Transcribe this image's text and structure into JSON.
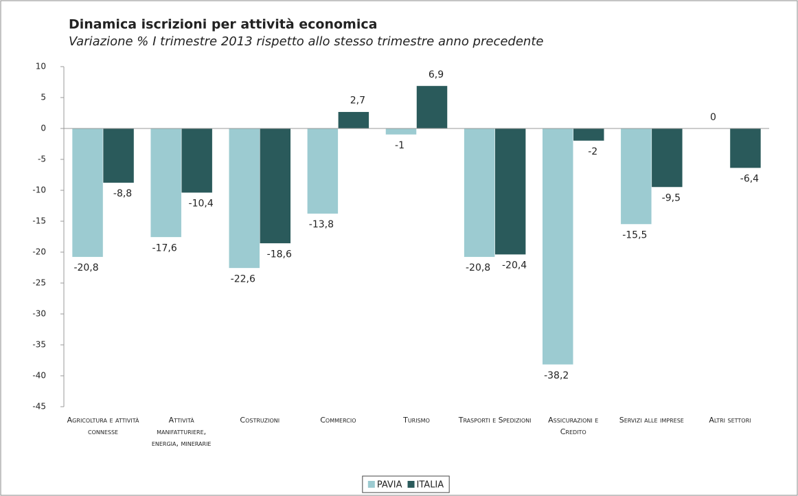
{
  "chart_data": {
    "type": "bar",
    "title": "Dinamica iscrizioni per attività economica",
    "subtitle": "Variazione % I trimestre 2013 rispetto allo stesso trimestre anno precedente",
    "categories": [
      "Agricoltura e attività connesse",
      "Attività manifatturiere, energia, minerarie",
      "Costruzioni",
      "Commercio",
      "Turismo",
      "Trasporti e Spedizioni",
      "Assicurazioni e Credito",
      "Servizi alle imprese",
      "Altri settori"
    ],
    "series": [
      {
        "name": "PAVIA",
        "color": "#9ccbd1",
        "values": [
          -20.8,
          -17.6,
          -22.6,
          -13.8,
          -1,
          -20.8,
          -38.2,
          -15.5,
          0
        ],
        "value_labels": [
          "-20,8",
          "-17,6",
          "-22,6",
          "-13,8",
          "-1",
          "-20,8",
          "-38,2",
          "-15,5",
          "0"
        ]
      },
      {
        "name": "ITALIA",
        "color": "#2a5a5b",
        "values": [
          -8.8,
          -10.4,
          -18.6,
          2.7,
          6.9,
          -20.4,
          -2,
          -9.5,
          -6.4
        ],
        "value_labels": [
          "-8,8",
          "-10,4",
          "-18,6",
          "2,7",
          "6,9",
          "-20,4",
          "-2",
          "-9,5",
          "-6,4"
        ]
      }
    ],
    "ylim": [
      -45,
      10
    ],
    "yticks": [
      10,
      5,
      0,
      -5,
      -10,
      -15,
      -20,
      -25,
      -30,
      -35,
      -40,
      -45
    ],
    "grid": false,
    "legend": "bottom"
  }
}
